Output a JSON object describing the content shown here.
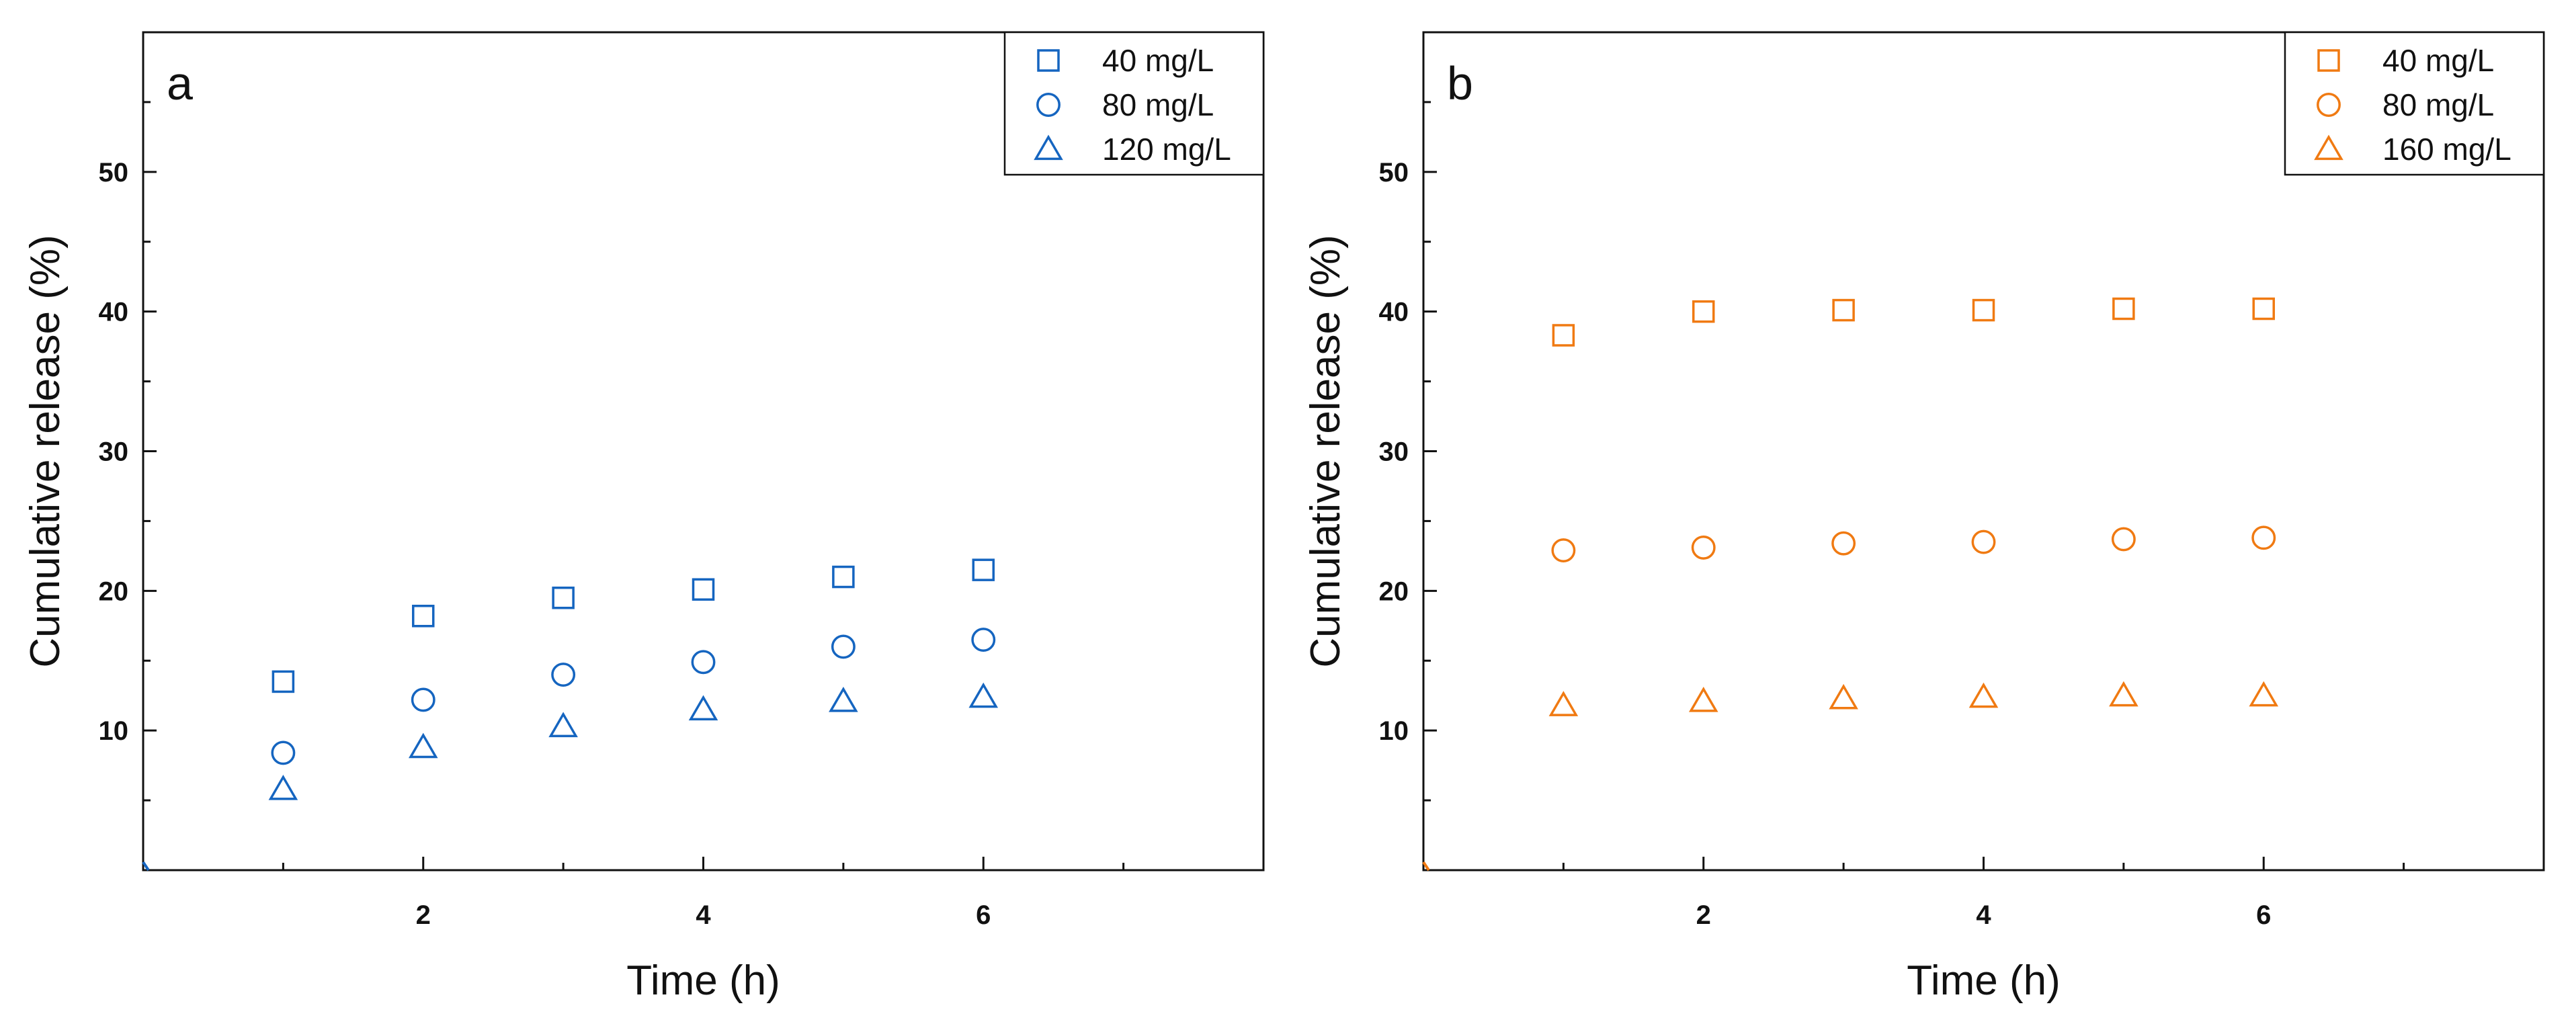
{
  "chart_data": [
    {
      "type": "scatter",
      "panel_label": "a",
      "xlabel": "Time (h)",
      "ylabel": "Cumulative release (%)",
      "xlim": [
        0,
        8
      ],
      "ylim": [
        0,
        60
      ],
      "xticks": [
        2,
        4,
        6
      ],
      "xminor": [
        1,
        3,
        5,
        7
      ],
      "yticks": [
        10,
        20,
        30,
        40,
        50
      ],
      "yminor": [
        5,
        15,
        25,
        35,
        45,
        55
      ],
      "grid": false,
      "legend_position": "top-right",
      "color": "#1565C0",
      "series": [
        {
          "name": "40 mg/L",
          "marker": "square",
          "x": [
            1,
            2,
            3,
            4,
            5,
            6
          ],
          "y": [
            13.5,
            18.2,
            19.5,
            20.1,
            21.0,
            21.5
          ]
        },
        {
          "name": "80 mg/L",
          "marker": "circle",
          "x": [
            1,
            2,
            3,
            4,
            5,
            6
          ],
          "y": [
            8.4,
            12.2,
            14.0,
            14.9,
            16.0,
            16.5
          ]
        },
        {
          "name": "120 mg/L",
          "marker": "triangle",
          "x": [
            1,
            2,
            3,
            4,
            5,
            6
          ],
          "y": [
            5.8,
            8.8,
            10.3,
            11.5,
            12.1,
            12.4
          ]
        }
      ]
    },
    {
      "type": "scatter",
      "panel_label": "b",
      "xlabel": "Time (h)",
      "ylabel": "Cumulative release (%)",
      "xlim": [
        0,
        8
      ],
      "ylim": [
        0,
        60
      ],
      "xticks": [
        2,
        4,
        6
      ],
      "xminor": [
        1,
        3,
        5,
        7
      ],
      "yticks": [
        10,
        20,
        30,
        40,
        50
      ],
      "yminor": [
        5,
        15,
        25,
        35,
        45,
        55
      ],
      "grid": false,
      "legend_position": "top-right",
      "color": "#F07A12",
      "series": [
        {
          "name": "40 mg/L",
          "marker": "square",
          "x": [
            1,
            2,
            3,
            4,
            5,
            6
          ],
          "y": [
            38.3,
            40.0,
            40.1,
            40.1,
            40.2,
            40.2
          ]
        },
        {
          "name": "80 mg/L",
          "marker": "circle",
          "x": [
            1,
            2,
            3,
            4,
            5,
            6
          ],
          "y": [
            22.9,
            23.1,
            23.4,
            23.5,
            23.7,
            23.8
          ]
        },
        {
          "name": "160 mg/L",
          "marker": "triangle",
          "x": [
            1,
            2,
            3,
            4,
            5,
            6
          ],
          "y": [
            11.8,
            12.1,
            12.3,
            12.4,
            12.5,
            12.5
          ]
        }
      ]
    }
  ]
}
